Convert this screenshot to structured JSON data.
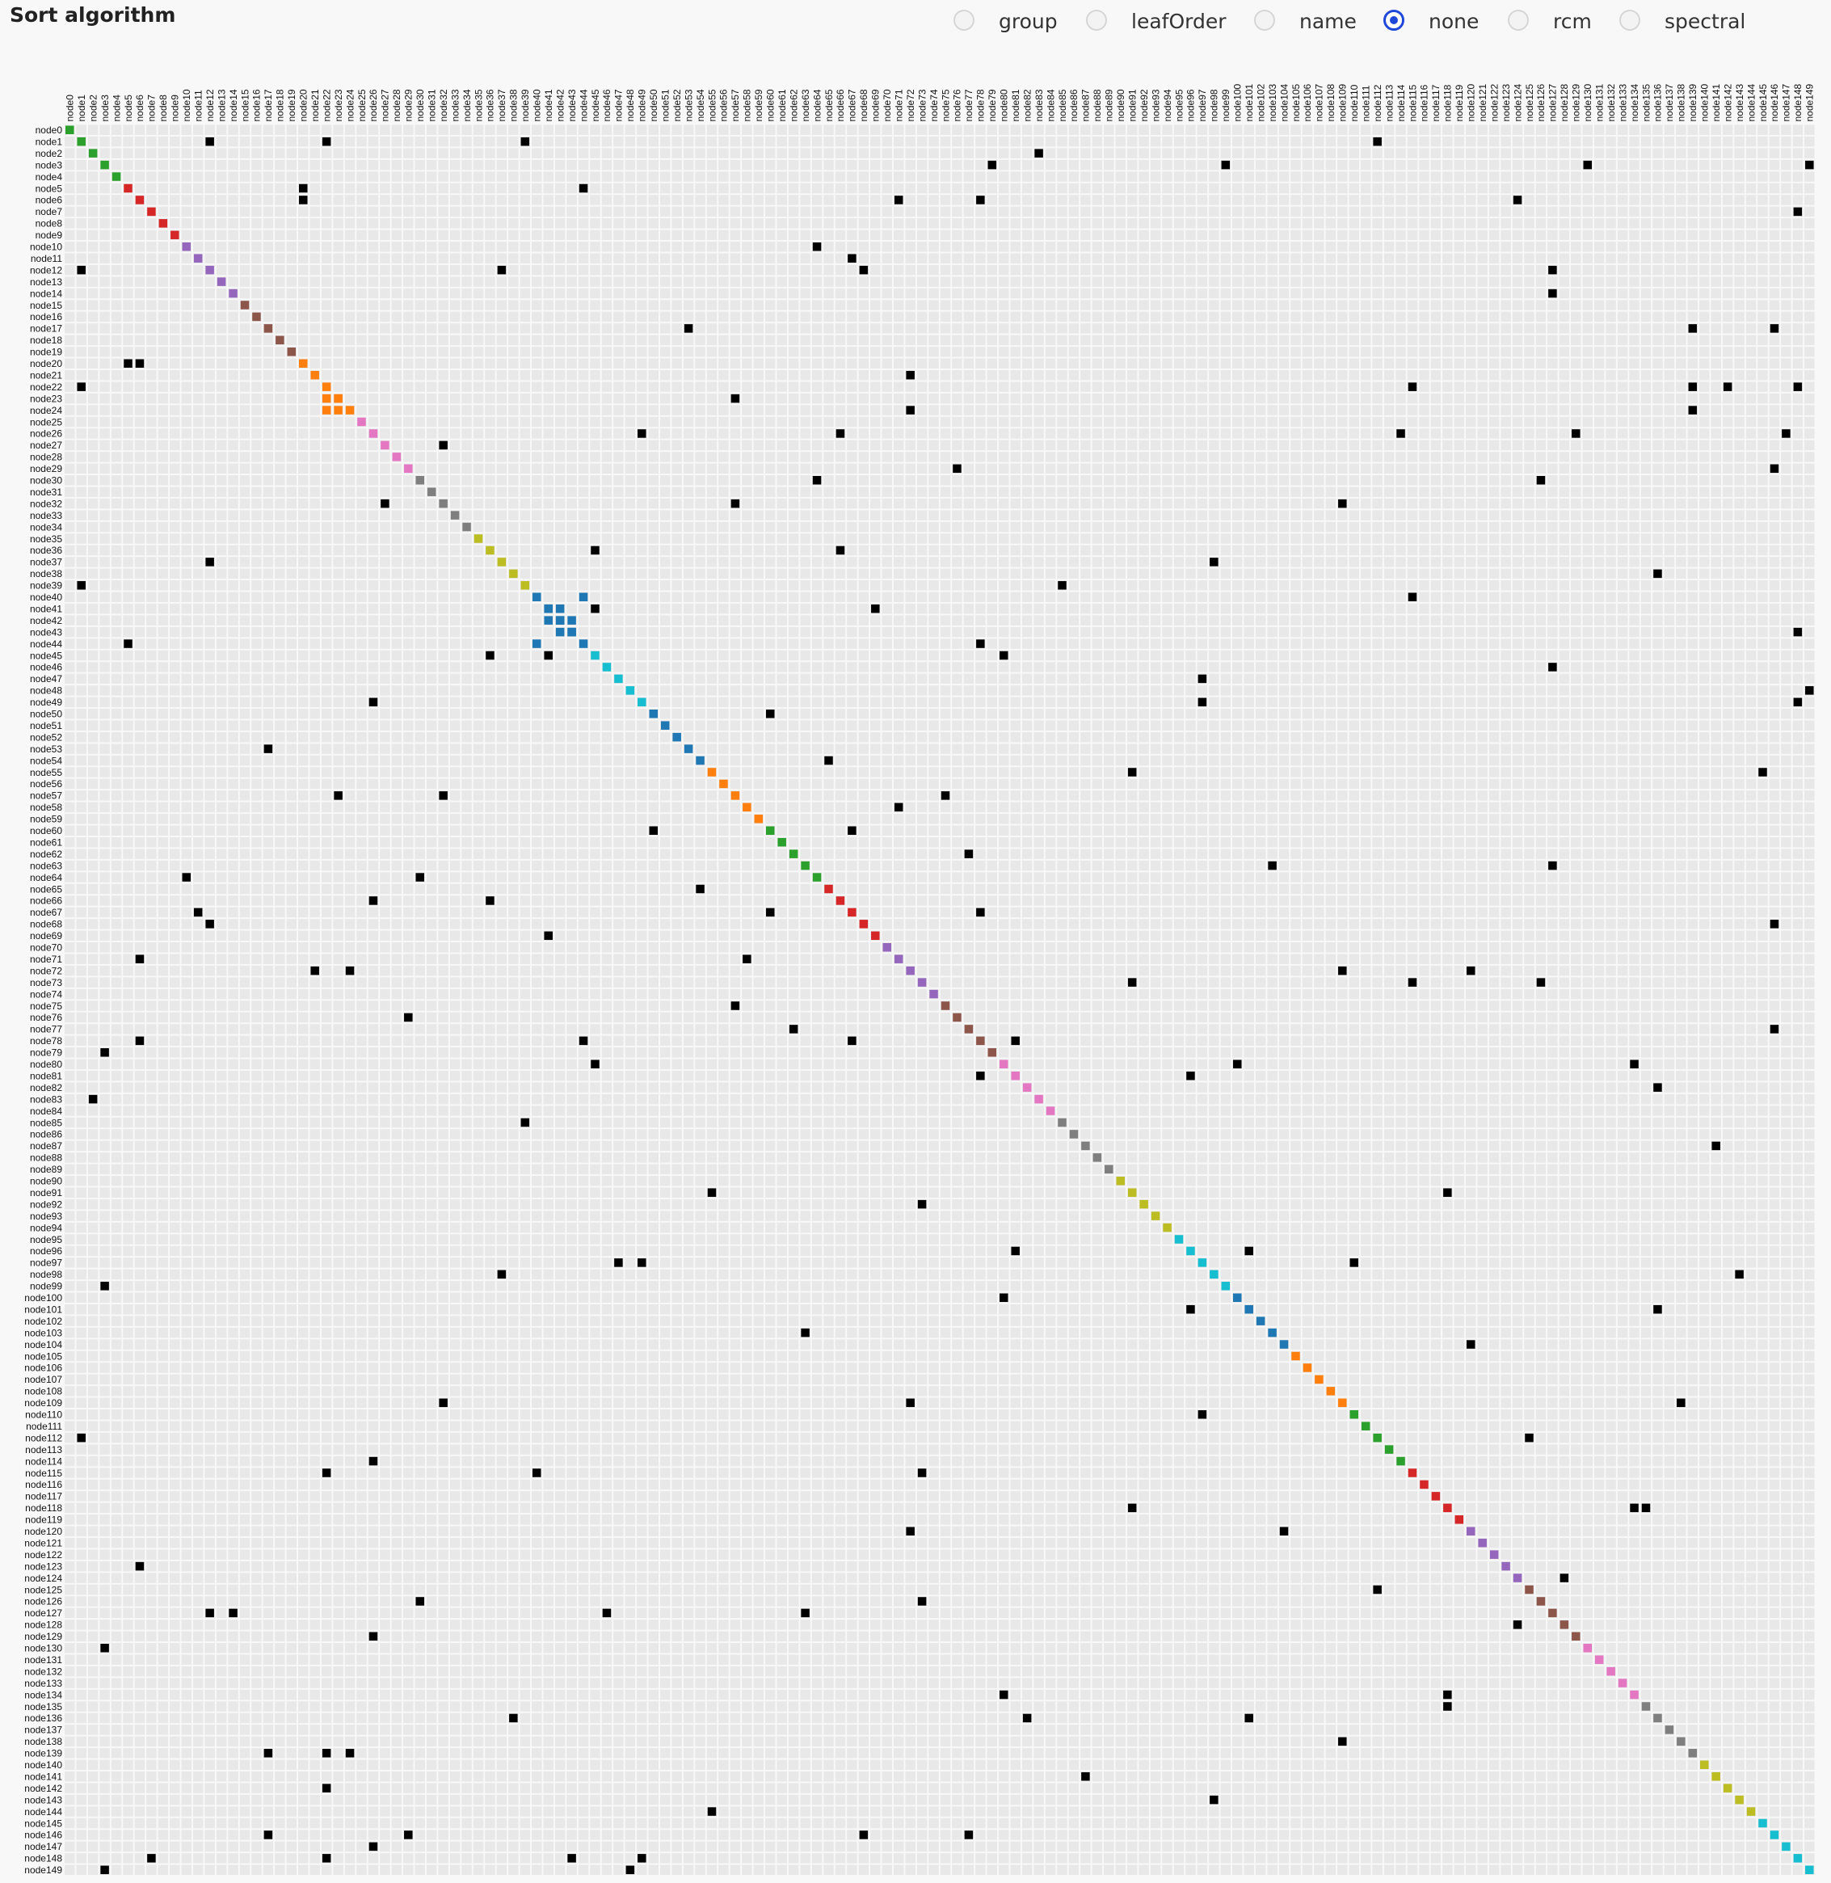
{
  "title": "Sort algorithm",
  "sort_options": [
    {
      "label": "group",
      "checked": false
    },
    {
      "label": "leafOrder",
      "checked": false
    },
    {
      "label": "name",
      "checked": false
    },
    {
      "label": "none",
      "checked": true
    },
    {
      "label": "rcm",
      "checked": false
    },
    {
      "label": "spectral",
      "checked": false
    }
  ],
  "matrix": {
    "node_count": 150,
    "node_prefix": "node",
    "background_cell_color": "#e8e8e8",
    "link_color": "#000000",
    "group_colors": [
      "#2ca02c",
      "#d62728",
      "#9467bd",
      "#8c564b",
      "#e377c2",
      "#7f7f7f",
      "#bcbd22",
      "#17becf",
      "#1f77b4",
      "#ff7f0e"
    ],
    "diagonal_groups": [
      {
        "start": 0,
        "end": 4,
        "color": "#2ca02c"
      },
      {
        "start": 5,
        "end": 9,
        "color": "#d62728"
      },
      {
        "start": 10,
        "end": 14,
        "color": "#9467bd"
      },
      {
        "start": 15,
        "end": 19,
        "color": "#8c564b"
      },
      {
        "start": 20,
        "end": 24,
        "color": "#ff7f0e"
      },
      {
        "start": 25,
        "end": 29,
        "color": "#e377c2"
      },
      {
        "start": 30,
        "end": 34,
        "color": "#7f7f7f"
      },
      {
        "start": 35,
        "end": 39,
        "color": "#bcbd22"
      },
      {
        "start": 40,
        "end": 44,
        "color": "#1f77b4"
      },
      {
        "start": 45,
        "end": 49,
        "color": "#17becf"
      },
      {
        "start": 50,
        "end": 54,
        "color": "#1f77b4"
      },
      {
        "start": 55,
        "end": 59,
        "color": "#ff7f0e"
      },
      {
        "start": 60,
        "end": 64,
        "color": "#2ca02c"
      },
      {
        "start": 65,
        "end": 69,
        "color": "#d62728"
      },
      {
        "start": 70,
        "end": 74,
        "color": "#9467bd"
      },
      {
        "start": 75,
        "end": 79,
        "color": "#8c564b"
      },
      {
        "start": 80,
        "end": 84,
        "color": "#e377c2"
      },
      {
        "start": 85,
        "end": 89,
        "color": "#7f7f7f"
      },
      {
        "start": 90,
        "end": 94,
        "color": "#bcbd22"
      },
      {
        "start": 95,
        "end": 99,
        "color": "#17becf"
      },
      {
        "start": 100,
        "end": 104,
        "color": "#1f77b4"
      },
      {
        "start": 105,
        "end": 109,
        "color": "#ff7f0e"
      },
      {
        "start": 110,
        "end": 114,
        "color": "#2ca02c"
      },
      {
        "start": 115,
        "end": 119,
        "color": "#d62728"
      },
      {
        "start": 120,
        "end": 124,
        "color": "#9467bd"
      },
      {
        "start": 125,
        "end": 129,
        "color": "#8c564b"
      },
      {
        "start": 130,
        "end": 134,
        "color": "#e377c2"
      },
      {
        "start": 135,
        "end": 139,
        "color": "#7f7f7f"
      },
      {
        "start": 140,
        "end": 144,
        "color": "#bcbd22"
      },
      {
        "start": 145,
        "end": 149,
        "color": "#17becf"
      }
    ],
    "colored_links": [
      {
        "row": 23,
        "col": 22,
        "color": "#ff7f0e"
      },
      {
        "row": 23,
        "col": 23,
        "color": "#ff7f0e"
      },
      {
        "row": 24,
        "col": 22,
        "color": "#ff7f0e"
      },
      {
        "row": 24,
        "col": 23,
        "color": "#ff7f0e"
      },
      {
        "row": 40,
        "col": 44,
        "color": "#1f77b4"
      },
      {
        "row": 41,
        "col": 41,
        "color": "#1f77b4"
      },
      {
        "row": 41,
        "col": 42,
        "color": "#1f77b4"
      },
      {
        "row": 42,
        "col": 41,
        "color": "#1f77b4"
      },
      {
        "row": 42,
        "col": 42,
        "color": "#1f77b4"
      },
      {
        "row": 42,
        "col": 43,
        "color": "#1f77b4"
      },
      {
        "row": 43,
        "col": 42,
        "color": "#1f77b4"
      },
      {
        "row": 43,
        "col": 43,
        "color": "#1f77b4"
      },
      {
        "row": 44,
        "col": 40,
        "color": "#1f77b4"
      }
    ],
    "links": [
      [
        1,
        12
      ],
      [
        1,
        22
      ],
      [
        1,
        39
      ],
      [
        1,
        112
      ],
      [
        2,
        83
      ],
      [
        3,
        79
      ],
      [
        3,
        99
      ],
      [
        3,
        130
      ],
      [
        3,
        149
      ],
      [
        5,
        20
      ],
      [
        5,
        44
      ],
      [
        6,
        20
      ],
      [
        6,
        71
      ],
      [
        6,
        78
      ],
      [
        6,
        124
      ],
      [
        7,
        148
      ],
      [
        10,
        64
      ],
      [
        11,
        67
      ],
      [
        12,
        1
      ],
      [
        12,
        37
      ],
      [
        12,
        68
      ],
      [
        12,
        127
      ],
      [
        14,
        127
      ],
      [
        17,
        53
      ],
      [
        17,
        139
      ],
      [
        17,
        146
      ],
      [
        20,
        5
      ],
      [
        20,
        6
      ],
      [
        21,
        72
      ],
      [
        22,
        1
      ],
      [
        22,
        115
      ],
      [
        22,
        139
      ],
      [
        22,
        142
      ],
      [
        22,
        148
      ],
      [
        23,
        57
      ],
      [
        24,
        72
      ],
      [
        24,
        139
      ],
      [
        26,
        49
      ],
      [
        26,
        66
      ],
      [
        26,
        114
      ],
      [
        26,
        129
      ],
      [
        26,
        147
      ],
      [
        27,
        32
      ],
      [
        29,
        76
      ],
      [
        29,
        146
      ],
      [
        30,
        64
      ],
      [
        30,
        126
      ],
      [
        32,
        27
      ],
      [
        32,
        57
      ],
      [
        32,
        109
      ],
      [
        36,
        45
      ],
      [
        36,
        66
      ],
      [
        37,
        12
      ],
      [
        37,
        98
      ],
      [
        38,
        136
      ],
      [
        39,
        1
      ],
      [
        39,
        85
      ],
      [
        40,
        115
      ],
      [
        41,
        45
      ],
      [
        41,
        69
      ],
      [
        43,
        148
      ],
      [
        44,
        5
      ],
      [
        44,
        78
      ],
      [
        45,
        36
      ],
      [
        45,
        41
      ],
      [
        45,
        80
      ],
      [
        46,
        127
      ],
      [
        47,
        97
      ],
      [
        48,
        149
      ],
      [
        49,
        26
      ],
      [
        49,
        97
      ],
      [
        49,
        148
      ],
      [
        50,
        60
      ],
      [
        53,
        17
      ],
      [
        54,
        65
      ],
      [
        55,
        91
      ],
      [
        55,
        145
      ],
      [
        57,
        23
      ],
      [
        57,
        32
      ],
      [
        57,
        75
      ],
      [
        58,
        71
      ],
      [
        60,
        50
      ],
      [
        60,
        67
      ],
      [
        62,
        77
      ],
      [
        63,
        103
      ],
      [
        63,
        127
      ],
      [
        64,
        10
      ],
      [
        64,
        30
      ],
      [
        65,
        54
      ],
      [
        66,
        26
      ],
      [
        66,
        36
      ],
      [
        67,
        11
      ],
      [
        67,
        60
      ],
      [
        67,
        78
      ],
      [
        68,
        12
      ],
      [
        68,
        146
      ],
      [
        69,
        41
      ],
      [
        71,
        6
      ],
      [
        71,
        58
      ],
      [
        72,
        21
      ],
      [
        72,
        24
      ],
      [
        72,
        109
      ],
      [
        72,
        120
      ],
      [
        73,
        91
      ],
      [
        73,
        115
      ],
      [
        73,
        126
      ],
      [
        75,
        57
      ],
      [
        76,
        29
      ],
      [
        77,
        62
      ],
      [
        77,
        146
      ],
      [
        78,
        6
      ],
      [
        78,
        44
      ],
      [
        78,
        67
      ],
      [
        78,
        81
      ],
      [
        79,
        3
      ],
      [
        80,
        45
      ],
      [
        80,
        100
      ],
      [
        80,
        134
      ],
      [
        81,
        78
      ],
      [
        81,
        96
      ],
      [
        82,
        136
      ],
      [
        83,
        2
      ],
      [
        85,
        39
      ],
      [
        87,
        141
      ],
      [
        91,
        55
      ],
      [
        91,
        118
      ],
      [
        92,
        73
      ],
      [
        96,
        81
      ],
      [
        96,
        101
      ],
      [
        97,
        47
      ],
      [
        97,
        49
      ],
      [
        97,
        110
      ],
      [
        98,
        37
      ],
      [
        98,
        143
      ],
      [
        99,
        3
      ],
      [
        100,
        80
      ],
      [
        101,
        96
      ],
      [
        101,
        136
      ],
      [
        103,
        63
      ],
      [
        104,
        120
      ],
      [
        109,
        32
      ],
      [
        109,
        72
      ],
      [
        109,
        138
      ],
      [
        110,
        97
      ],
      [
        112,
        1
      ],
      [
        112,
        125
      ],
      [
        114,
        26
      ],
      [
        115,
        22
      ],
      [
        115,
        40
      ],
      [
        115,
        73
      ],
      [
        118,
        91
      ],
      [
        118,
        134
      ],
      [
        118,
        135
      ],
      [
        120,
        72
      ],
      [
        120,
        104
      ],
      [
        123,
        6
      ],
      [
        124,
        128
      ],
      [
        125,
        112
      ],
      [
        126,
        30
      ],
      [
        126,
        73
      ],
      [
        127,
        12
      ],
      [
        127,
        14
      ],
      [
        127,
        46
      ],
      [
        127,
        63
      ],
      [
        128,
        124
      ],
      [
        129,
        26
      ],
      [
        130,
        3
      ],
      [
        134,
        80
      ],
      [
        134,
        118
      ],
      [
        135,
        118
      ],
      [
        136,
        38
      ],
      [
        136,
        82
      ],
      [
        136,
        101
      ],
      [
        138,
        109
      ],
      [
        139,
        17
      ],
      [
        139,
        22
      ],
      [
        139,
        24
      ],
      [
        141,
        87
      ],
      [
        142,
        22
      ],
      [
        143,
        98
      ],
      [
        144,
        55
      ],
      [
        146,
        17
      ],
      [
        146,
        29
      ],
      [
        146,
        68
      ],
      [
        146,
        77
      ],
      [
        147,
        26
      ],
      [
        148,
        7
      ],
      [
        148,
        22
      ],
      [
        148,
        43
      ],
      [
        148,
        49
      ],
      [
        149,
        3
      ],
      [
        149,
        48
      ]
    ]
  }
}
